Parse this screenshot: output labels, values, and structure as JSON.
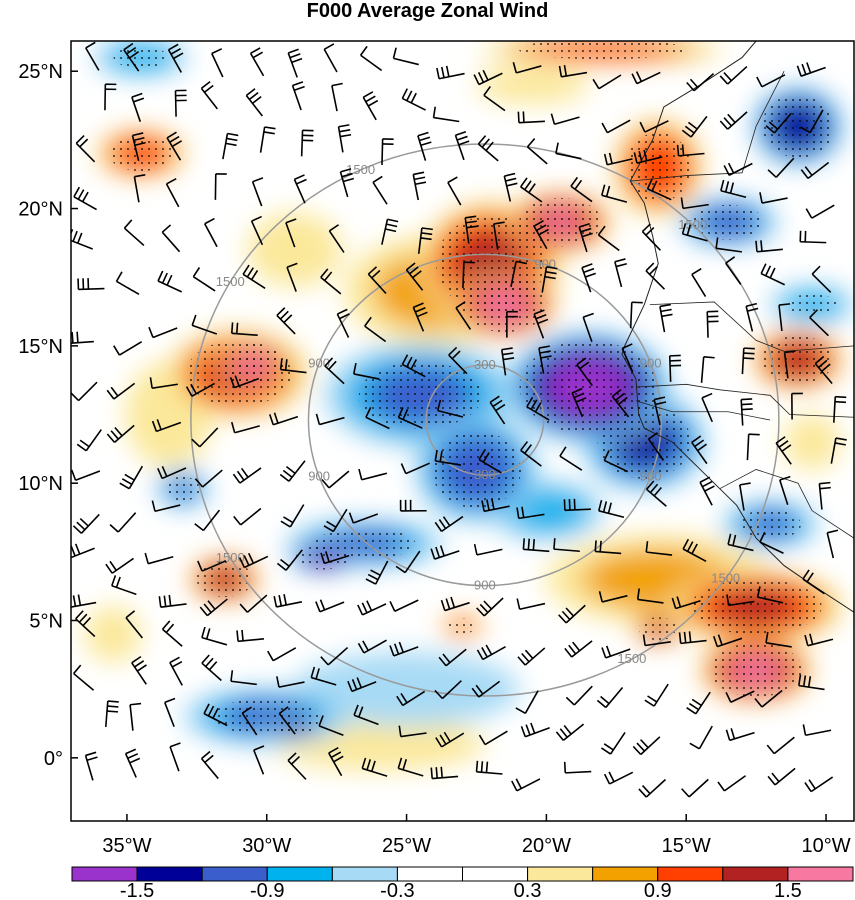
{
  "title": "F000 Average Zonal Wind",
  "map": {
    "lat_ticks": [
      {
        "value": 25,
        "label": "25°N"
      },
      {
        "value": 20,
        "label": "20°N"
      },
      {
        "value": 15,
        "label": "15°N"
      },
      {
        "value": 10,
        "label": "10°N"
      },
      {
        "value": 5,
        "label": "5°N"
      },
      {
        "value": 0,
        "label": "0°"
      }
    ],
    "lon_ticks": [
      {
        "value": -35,
        "label": "35°W"
      },
      {
        "value": -30,
        "label": "30°W"
      },
      {
        "value": -25,
        "label": "25°W"
      },
      {
        "value": -20,
        "label": "20°W"
      },
      {
        "value": -15,
        "label": "15°W"
      },
      {
        "value": -10,
        "label": "10°W"
      }
    ],
    "lon_range": [
      -37,
      -9
    ],
    "lat_range": [
      -2.3,
      26.1
    ],
    "range_ring_center": {
      "lon": -22.2,
      "lat": 12.3
    },
    "range_rings": [
      300,
      900,
      1500
    ],
    "range_ring_labels": [
      "300",
      "300",
      "900",
      "900",
      "900",
      "900",
      "900",
      "900",
      "1500",
      "1500",
      "1500",
      "1500",
      "1500",
      "1500"
    ],
    "stippling": "dots mark significant areas",
    "wind_barbs": "present"
  },
  "colorbar": {
    "colors": [
      "#9933cc",
      "#000099",
      "#3a5fcd",
      "#00b2ee",
      "#a7daf5",
      "#ffffff",
      "#ffffff",
      "#fbe89a",
      "#f2a100",
      "#ff4000",
      "#b22222",
      "#f778a1"
    ],
    "labels": [
      "-1.5",
      "-0.9",
      "-0.3",
      "0.3",
      "0.9",
      "1.5"
    ]
  },
  "anomalies": [
    {
      "lon": -24.5,
      "lat": 13.2,
      "rx": 4.0,
      "ry": 2.2,
      "value": -1.0
    },
    {
      "lon": -18.5,
      "lat": 13.5,
      "rx": 3.2,
      "ry": 2.2,
      "value": -1.8
    },
    {
      "lon": -16.5,
      "lat": 11.5,
      "rx": 2.5,
      "ry": 2.0,
      "value": -1.3
    },
    {
      "lon": -22.5,
      "lat": 10.5,
      "rx": 2.5,
      "ry": 2.2,
      "value": -1.2
    },
    {
      "lon": -26.5,
      "lat": 7.8,
      "rx": 3.3,
      "ry": 1.0,
      "value": -1.0
    },
    {
      "lon": -28.0,
      "lat": 7.3,
      "rx": 1.3,
      "ry": 0.6,
      "value": -1.6
    },
    {
      "lon": -20.0,
      "lat": 9.0,
      "rx": 2.5,
      "ry": 1.3,
      "value": -0.8
    },
    {
      "lon": -12.0,
      "lat": 8.5,
      "rx": 2.0,
      "ry": 1.0,
      "value": -1.0
    },
    {
      "lon": -22.0,
      "lat": 18.0,
      "rx": 2.8,
      "ry": 2.5,
      "value": 1.4
    },
    {
      "lon": -21.5,
      "lat": 16.5,
      "rx": 2.0,
      "ry": 1.3,
      "value": 1.8
    },
    {
      "lon": -19.5,
      "lat": 19.5,
      "rx": 2.0,
      "ry": 1.2,
      "value": 1.6
    },
    {
      "lon": -16.0,
      "lat": 21.5,
      "rx": 1.8,
      "ry": 2.0,
      "value": 1.2
    },
    {
      "lon": -31.0,
      "lat": 14.0,
      "rx": 2.8,
      "ry": 1.8,
      "value": 1.3
    },
    {
      "lon": -30.5,
      "lat": 14.3,
      "rx": 1.4,
      "ry": 1.0,
      "value": 1.8
    },
    {
      "lon": -34.5,
      "lat": 22.0,
      "rx": 1.8,
      "ry": 1.0,
      "value": 1.2
    },
    {
      "lon": -31.5,
      "lat": 6.5,
      "rx": 1.4,
      "ry": 0.9,
      "value": 1.5
    },
    {
      "lon": -12.5,
      "lat": 5.5,
      "rx": 3.5,
      "ry": 1.5,
      "value": 1.3
    },
    {
      "lon": -12.5,
      "lat": 3.2,
      "rx": 2.2,
      "ry": 1.3,
      "value": 1.7
    },
    {
      "lon": -11.0,
      "lat": 14.5,
      "rx": 1.8,
      "ry": 1.2,
      "value": 1.5
    },
    {
      "lon": -16.0,
      "lat": 4.7,
      "rx": 1.0,
      "ry": 0.6,
      "value": 1.4
    },
    {
      "lon": -23.0,
      "lat": 4.8,
      "rx": 0.9,
      "ry": 0.5,
      "value": 1.0
    },
    {
      "lon": -30.0,
      "lat": 1.5,
      "rx": 3.5,
      "ry": 1.2,
      "value": -1.0
    },
    {
      "lon": -29.0,
      "lat": 1.2,
      "rx": 1.2,
      "ry": 0.5,
      "value": -1.4
    },
    {
      "lon": -11.0,
      "lat": 23.0,
      "rx": 1.8,
      "ry": 1.6,
      "value": -1.5
    },
    {
      "lon": -13.5,
      "lat": 19.5,
      "rx": 2.0,
      "ry": 1.0,
      "value": -1.2
    },
    {
      "lon": -34.5,
      "lat": 25.5,
      "rx": 2.0,
      "ry": 0.8,
      "value": -0.9
    },
    {
      "lon": -10.5,
      "lat": 16.5,
      "rx": 1.8,
      "ry": 0.8,
      "value": -0.9
    },
    {
      "lon": -33.0,
      "lat": 9.8,
      "rx": 1.1,
      "ry": 0.8,
      "value": -1.0
    },
    {
      "lon": -24.0,
      "lat": 17.0,
      "rx": 4.0,
      "ry": 2.5,
      "value": 0.7
    },
    {
      "lon": -33.5,
      "lat": 12.5,
      "rx": 2.0,
      "ry": 2.5,
      "value": 0.6
    },
    {
      "lon": -16.0,
      "lat": 6.5,
      "rx": 5.0,
      "ry": 2.0,
      "value": 0.7
    },
    {
      "lon": -25.0,
      "lat": 2.5,
      "rx": 6.0,
      "ry": 2.0,
      "value": -0.4
    },
    {
      "lon": -26.0,
      "lat": 0.5,
      "rx": 6.0,
      "ry": 1.5,
      "value": 0.35
    },
    {
      "lon": -20.5,
      "lat": 24.5,
      "rx": 3.0,
      "ry": 1.0,
      "value": 0.4
    },
    {
      "lon": -18.0,
      "lat": 25.8,
      "rx": 5.0,
      "ry": 0.6,
      "value": 1.1
    },
    {
      "lon": -29.0,
      "lat": 18.5,
      "rx": 2.5,
      "ry": 2.0,
      "value": 0.4
    },
    {
      "lon": -35.5,
      "lat": 4.5,
      "rx": 1.5,
      "ry": 1.5,
      "value": 0.4
    },
    {
      "lon": -10.5,
      "lat": 11.5,
      "rx": 1.5,
      "ry": 1.5,
      "value": 0.4
    }
  ]
}
